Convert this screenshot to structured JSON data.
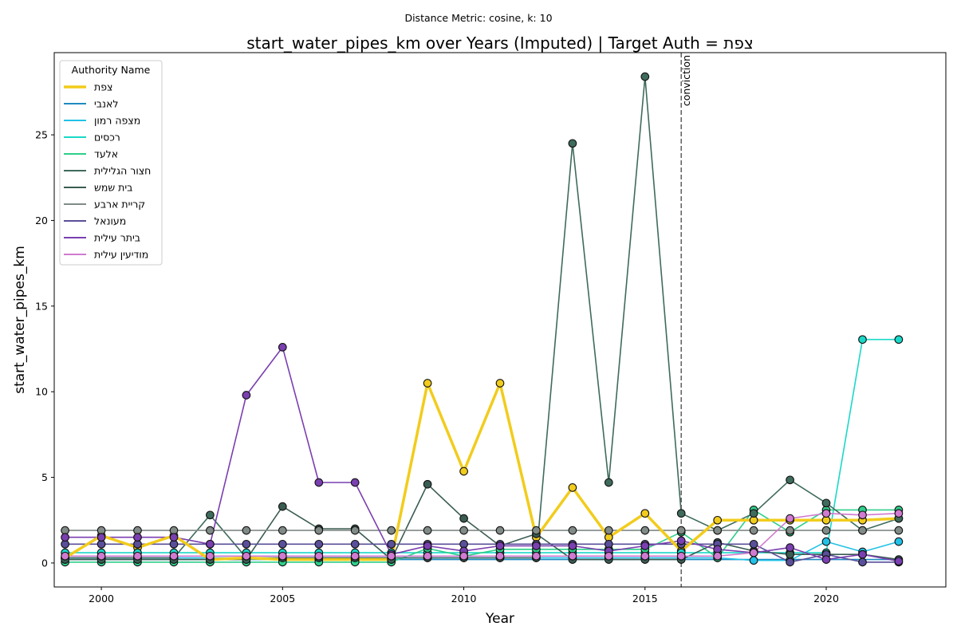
{
  "chart_data": {
    "type": "line",
    "suptitle": "Distance Metric: cosine, k: 10",
    "title": "start_water_pipes_km over Years (Imputed) | Target Auth = צפת",
    "xlabel": "Year",
    "ylabel": "start_water_pipes_km",
    "xlim": [
      1998.7,
      2023.3
    ],
    "ylim": [
      -1.4,
      29.8
    ],
    "x_ticks": [
      2000,
      2005,
      2010,
      2015,
      2020
    ],
    "y_ticks": [
      0,
      5,
      10,
      15,
      20,
      25
    ],
    "grid": false,
    "legend_title": "Authority Name",
    "legend_position": "top-left",
    "annotation": {
      "x": 2016,
      "label": "conviction",
      "color": "#666666"
    },
    "x": [
      1999,
      2000,
      2001,
      2002,
      2003,
      2004,
      2005,
      2006,
      2007,
      2008,
      2009,
      2010,
      2011,
      2012,
      2013,
      2014,
      2015,
      2016,
      2017,
      2018,
      2019,
      2020,
      2021,
      2022
    ],
    "series": [
      {
        "name": "צפת",
        "color": "#f2cc1c",
        "width": 3.5,
        "markers": true,
        "values": [
          0.3,
          1.6,
          0.9,
          1.6,
          0.2,
          0.3,
          0.2,
          0.2,
          0.2,
          0.2,
          10.5,
          5.35,
          10.5,
          1.5,
          4.4,
          1.5,
          2.9,
          0.7,
          2.5,
          2.5,
          2.5,
          2.5,
          2.5,
          2.6
        ]
      },
      {
        "name": "לאנבי",
        "color": "#1f8ac0",
        "width": 1.6,
        "markers": false,
        "values": [
          0.2,
          0.2,
          0.2,
          0.2,
          0.2,
          0.2,
          0.2,
          0.2,
          0.2,
          0.2,
          0.2,
          0.2,
          0.2,
          0.2,
          0.2,
          0.2,
          0.2,
          0.2,
          0.2,
          0.2,
          0.2,
          0.2,
          0.2,
          0.2
        ]
      },
      {
        "name": "מצפה רמון",
        "color": "#22c1e6",
        "width": 1.6,
        "markers": true,
        "values": [
          0.3,
          0.3,
          0.3,
          0.3,
          0.3,
          0.3,
          0.3,
          0.3,
          0.3,
          0.3,
          0.3,
          0.3,
          0.3,
          0.3,
          0.3,
          0.3,
          0.3,
          0.3,
          0.3,
          0.15,
          0.15,
          1.25,
          0.65,
          1.25
        ]
      },
      {
        "name": "רכסים",
        "color": "#1ad8c8",
        "width": 1.6,
        "markers": true,
        "values": [
          0.6,
          0.6,
          0.6,
          0.6,
          0.6,
          0.6,
          0.6,
          0.6,
          0.6,
          0.6,
          0.6,
          0.6,
          0.6,
          0.6,
          0.6,
          0.6,
          0.6,
          0.6,
          0.6,
          0.6,
          0.6,
          0.6,
          13.05,
          13.05
        ]
      },
      {
        "name": "אלעד",
        "color": "#2ecf8a",
        "width": 1.6,
        "markers": true,
        "values": [
          0.05,
          0.05,
          0.05,
          0.05,
          0.05,
          0.05,
          0.05,
          0.05,
          0.05,
          0.05,
          0.85,
          0.4,
          0.8,
          0.8,
          0.8,
          0.8,
          0.8,
          1.8,
          0.3,
          3.1,
          1.8,
          3.1,
          3.1,
          3.1
        ]
      },
      {
        "name": "חצור הגלילית",
        "color": "#3f6b5c",
        "width": 1.6,
        "markers": true,
        "values": [
          0.3,
          0.3,
          0.3,
          0.3,
          2.8,
          0.3,
          0.3,
          0.3,
          0.3,
          0.3,
          0.3,
          0.3,
          0.3,
          0.3,
          24.5,
          4.7,
          28.4,
          2.9,
          1.9,
          2.9,
          4.85,
          3.5,
          1.9,
          2.6
        ]
      },
      {
        "name": "בית שמש",
        "color": "#3a5c52",
        "width": 1.6,
        "markers": true,
        "values": [
          0.2,
          0.2,
          0.2,
          0.2,
          0.2,
          0.2,
          3.3,
          2.0,
          2.0,
          0.2,
          4.6,
          2.6,
          1.0,
          1.7,
          0.2,
          0.2,
          0.2,
          0.2,
          1.2,
          0.7,
          0.5,
          0.5,
          0.5,
          0.2
        ]
      },
      {
        "name": "קריית ארבע",
        "color": "#808a86",
        "width": 1.6,
        "markers": true,
        "values": [
          1.9,
          1.9,
          1.9,
          1.9,
          1.9,
          1.9,
          1.9,
          1.9,
          1.9,
          1.9,
          1.9,
          1.9,
          1.9,
          1.9,
          1.9,
          1.9,
          1.9,
          1.9,
          1.9,
          1.9,
          1.9,
          1.9,
          1.9,
          1.9
        ]
      },
      {
        "name": "מעונאל",
        "color": "#5a4f9a",
        "width": 1.6,
        "markers": true,
        "values": [
          1.1,
          1.1,
          1.1,
          1.1,
          1.1,
          1.1,
          1.1,
          1.1,
          1.1,
          1.1,
          1.1,
          1.1,
          1.1,
          1.1,
          1.1,
          1.1,
          1.1,
          1.1,
          1.1,
          1.1,
          0.05,
          0.5,
          0.05,
          0.05
        ]
      },
      {
        "name": "ביתר עילית",
        "color": "#7a3fb0",
        "width": 1.6,
        "markers": true,
        "values": [
          1.5,
          1.5,
          1.5,
          1.5,
          1.1,
          9.8,
          12.6,
          4.7,
          4.7,
          0.5,
          1.0,
          0.7,
          1.0,
          1.0,
          1.0,
          0.7,
          1.0,
          1.3,
          0.8,
          0.6,
          0.9,
          0.2,
          0.5,
          0.1
        ]
      },
      {
        "name": "מודיעין עילית",
        "color": "#d07ad0",
        "width": 1.6,
        "markers": true,
        "values": [
          0.4,
          0.4,
          0.4,
          0.4,
          0.4,
          0.4,
          0.4,
          0.4,
          0.4,
          0.4,
          0.4,
          0.4,
          0.4,
          0.4,
          0.4,
          0.4,
          0.4,
          0.4,
          0.4,
          0.6,
          2.6,
          2.9,
          2.8,
          2.9
        ]
      }
    ]
  }
}
